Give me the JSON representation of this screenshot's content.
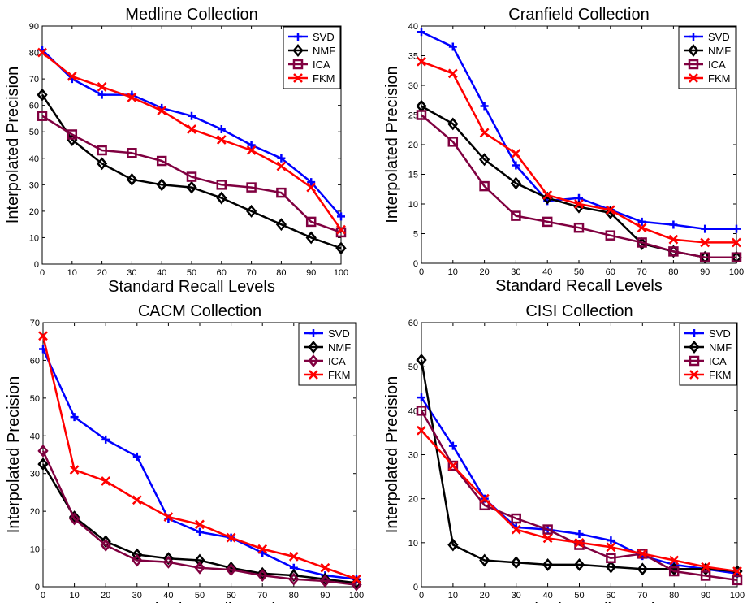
{
  "chart_data": [
    {
      "type": "line",
      "title": "Medline Collection",
      "xlabel": "Standard Recall Levels",
      "ylabel": "Interpolated Precision",
      "x": [
        0,
        10,
        20,
        30,
        40,
        50,
        60,
        70,
        80,
        90,
        100
      ],
      "xlim": [
        0,
        100
      ],
      "ylim": [
        0,
        90
      ],
      "xticks": [
        0,
        10,
        20,
        30,
        40,
        50,
        60,
        70,
        80,
        90,
        100
      ],
      "yticks": [
        0,
        10,
        20,
        30,
        40,
        50,
        60,
        70,
        80,
        90
      ],
      "legend_position": "top-right",
      "grid": false,
      "series": [
        {
          "name": "SVD",
          "color": "#0000ff",
          "marker": "plus",
          "values": [
            81,
            70,
            64,
            64,
            59,
            56,
            51,
            45,
            40,
            31,
            18
          ]
        },
        {
          "name": "NMF",
          "color": "#000000",
          "marker": "diamond",
          "values": [
            64,
            47,
            38,
            32,
            30,
            29,
            25,
            20,
            15,
            10,
            6
          ]
        },
        {
          "name": "ICA",
          "color": "#800040",
          "marker": "square",
          "values": [
            56,
            49,
            43,
            42,
            39,
            33,
            30,
            29,
            27,
            16,
            12
          ]
        },
        {
          "name": "FKM",
          "color": "#ff0000",
          "marker": "x",
          "values": [
            80,
            71,
            67,
            63,
            58,
            51,
            47,
            43,
            37,
            29,
            13
          ]
        }
      ]
    },
    {
      "type": "line",
      "title": "Cranfield Collection",
      "xlabel": "Standard Recall Levels",
      "ylabel": "Interpolated Precision",
      "x": [
        0,
        10,
        20,
        30,
        40,
        50,
        60,
        70,
        80,
        90,
        100
      ],
      "xlim": [
        0,
        100
      ],
      "ylim": [
        0,
        40
      ],
      "xticks": [
        0,
        10,
        20,
        30,
        40,
        50,
        60,
        70,
        80,
        90,
        100
      ],
      "yticks": [
        0,
        5,
        10,
        15,
        20,
        25,
        30,
        35,
        40
      ],
      "legend_position": "top-right",
      "grid": false,
      "series": [
        {
          "name": "SVD",
          "color": "#0000ff",
          "marker": "plus",
          "values": [
            39,
            36.5,
            26.5,
            16.5,
            10.5,
            11,
            9,
            7,
            6.5,
            5.8,
            5.8
          ]
        },
        {
          "name": "NMF",
          "color": "#000000",
          "marker": "diamond",
          "values": [
            26.5,
            23.5,
            17.5,
            13.5,
            11,
            9.5,
            8.5,
            3.3,
            2,
            1,
            1
          ]
        },
        {
          "name": "ICA",
          "color": "#800040",
          "marker": "square",
          "values": [
            25,
            20.5,
            13,
            8,
            7,
            6,
            4.7,
            3.5,
            2,
            1,
            1
          ]
        },
        {
          "name": "FKM",
          "color": "#ff0000",
          "marker": "x",
          "values": [
            34,
            32,
            22,
            18.5,
            11.5,
            10,
            9,
            6,
            4,
            3.5,
            3.5
          ]
        }
      ]
    },
    {
      "type": "line",
      "title": "CACM Collection",
      "xlabel": "Standard Recall Levels",
      "ylabel": "Interpolated Precision",
      "x": [
        0,
        10,
        20,
        30,
        40,
        50,
        60,
        70,
        80,
        90,
        100
      ],
      "xlim": [
        0,
        100
      ],
      "ylim": [
        0,
        70
      ],
      "xticks": [
        0,
        10,
        20,
        30,
        40,
        50,
        60,
        70,
        80,
        90,
        100
      ],
      "yticks": [
        0,
        10,
        20,
        30,
        40,
        50,
        60,
        70
      ],
      "legend_position": "top-right",
      "grid": false,
      "series": [
        {
          "name": "SVD",
          "color": "#0000ff",
          "marker": "plus",
          "values": [
            63,
            45,
            39,
            34.5,
            18,
            14.5,
            13,
            9,
            5,
            3,
            2
          ]
        },
        {
          "name": "NMF",
          "color": "#000000",
          "marker": "diamond",
          "values": [
            32.5,
            18.5,
            12,
            8.5,
            7.5,
            7,
            5,
            3.5,
            3,
            2,
            1
          ]
        },
        {
          "name": "ICA",
          "color": "#800040",
          "marker": "diamond",
          "values": [
            36,
            18,
            11,
            7,
            6.5,
            5,
            4.5,
            3,
            2,
            1.5,
            0.5
          ]
        },
        {
          "name": "FKM",
          "color": "#ff0000",
          "marker": "x",
          "values": [
            66.5,
            31,
            28,
            23,
            18.5,
            16.5,
            13,
            10,
            8,
            5,
            2
          ]
        }
      ]
    },
    {
      "type": "line",
      "title": "CISI Collection",
      "xlabel": "Standard Recall Levels",
      "ylabel": "Interpolated Precision",
      "x": [
        0,
        10,
        20,
        30,
        40,
        50,
        60,
        70,
        80,
        90,
        100
      ],
      "xlim": [
        0,
        100
      ],
      "ylim": [
        0,
        60
      ],
      "xticks": [
        0,
        10,
        20,
        30,
        40,
        50,
        60,
        70,
        80,
        90,
        100
      ],
      "yticks": [
        0,
        10,
        20,
        30,
        40,
        50,
        60
      ],
      "legend_position": "top-right",
      "grid": false,
      "series": [
        {
          "name": "SVD",
          "color": "#0000ff",
          "marker": "plus",
          "values": [
            43,
            32,
            20,
            13.5,
            13,
            12,
            10.5,
            7,
            5,
            4,
            3
          ]
        },
        {
          "name": "NMF",
          "color": "#000000",
          "marker": "diamond",
          "values": [
            51.5,
            9.5,
            6,
            5.5,
            5,
            5,
            4.5,
            4,
            4,
            4,
            3.5
          ]
        },
        {
          "name": "ICA",
          "color": "#800040",
          "marker": "square",
          "values": [
            40,
            27.5,
            18.5,
            15.5,
            13,
            9.5,
            6.5,
            7.5,
            3.5,
            2.5,
            1.5
          ]
        },
        {
          "name": "FKM",
          "color": "#ff0000",
          "marker": "x",
          "values": [
            35.5,
            27.5,
            20,
            13,
            11,
            10,
            9,
            7.5,
            6,
            4.5,
            3.5
          ]
        }
      ]
    }
  ]
}
